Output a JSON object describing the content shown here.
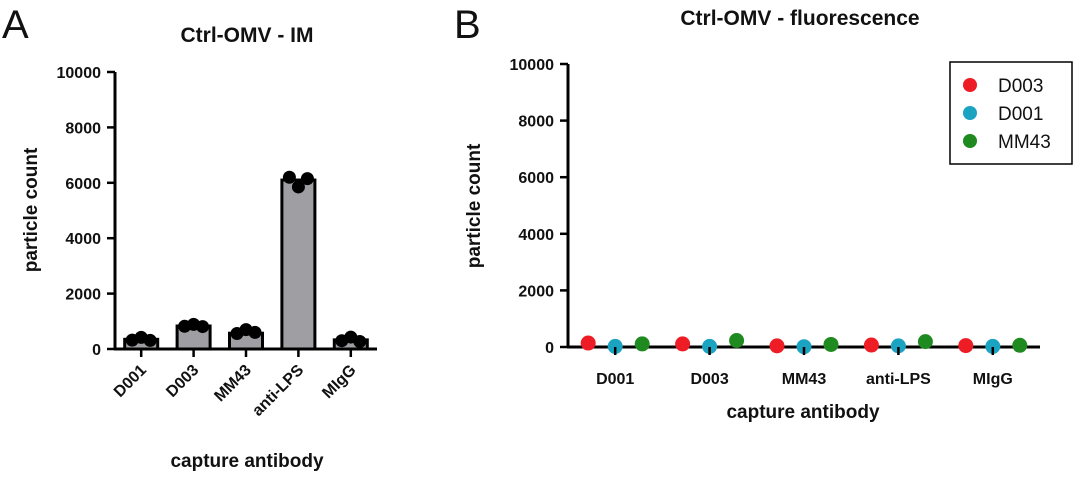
{
  "chart_data": [
    {
      "panel": "A",
      "type": "bar",
      "title": "Ctrl-OMV - IM",
      "xlabel": "capture antibody",
      "ylabel": "particle count",
      "ylim": [
        0,
        10000
      ],
      "yticks": [
        "0",
        "2000",
        "4000",
        "6000",
        "8000",
        "10000"
      ],
      "categories": [
        "D001",
        "D003",
        "MM43",
        "anti-LPS",
        "MIgG"
      ],
      "values": [
        350,
        830,
        570,
        6100,
        330
      ],
      "points": [
        [
          320,
          420,
          310
        ],
        [
          820,
          890,
          810
        ],
        [
          560,
          700,
          600
        ],
        [
          6200,
          5850,
          6150
        ],
        [
          300,
          430,
          270
        ]
      ],
      "bar_color": "#9f9fa3",
      "point_color": "#000000",
      "grid": false
    },
    {
      "panel": "B",
      "type": "scatter",
      "title": "Ctrl-OMV - fluorescence",
      "xlabel": "capture antibody",
      "ylabel": "particle count",
      "ylim": [
        0,
        10000
      ],
      "yticks": [
        "0",
        "2000",
        "4000",
        "6000",
        "8000",
        "10000"
      ],
      "categories": [
        "D001",
        "D003",
        "MM43",
        "anti-LPS",
        "MIgG"
      ],
      "series": [
        {
          "name": "D003",
          "color": "#ee1c25",
          "values": [
            140,
            110,
            40,
            70,
            50
          ]
        },
        {
          "name": "D001",
          "color": "#1ba3c2",
          "values": [
            20,
            20,
            10,
            40,
            20
          ]
        },
        {
          "name": "MM43",
          "color": "#1f8a1f",
          "values": [
            110,
            230,
            90,
            190,
            60
          ]
        }
      ],
      "legend_position": "top-right",
      "grid": false
    }
  ]
}
